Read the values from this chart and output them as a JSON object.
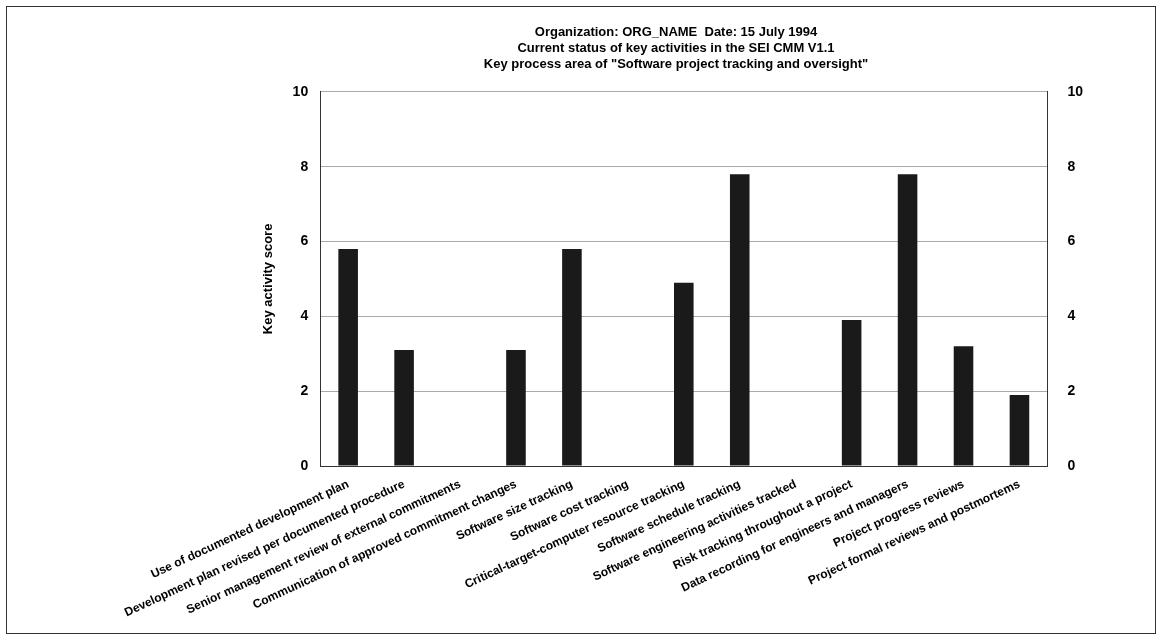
{
  "chart_data": {
    "type": "bar",
    "title": [
      "Organization: ORG_NAME  Date: 15 July 1994",
      "Current status of key activities in the SEI CMM V1.1",
      "Key process area of \"Software project tracking and oversight\""
    ],
    "ylabel": "Key activity score",
    "categories": [
      "Use of documented development plan",
      "Development plan revised per documented procedure",
      "Senior management review of external commitments",
      "Communication of approved commitment changes",
      "Software size tracking",
      "Software cost tracking",
      "Critical-target-computer resource tracking",
      "Software schedule tracking",
      "Software engineering activities tracked",
      "Risk tracking throughout a project",
      "Data recording for engineers and managers",
      "Project progress reviews",
      "Project formal reviews and postmortems"
    ],
    "values": [
      5.8,
      3.1,
      0,
      3.1,
      5.8,
      0,
      4.9,
      7.8,
      0,
      3.9,
      7.8,
      3.2,
      1.9
    ],
    "color": "#1a1a1a",
    "ylim": [
      0,
      10
    ],
    "yticks": [
      0,
      2,
      4,
      6,
      8,
      10
    ],
    "y2lim": [
      0,
      10
    ],
    "y2ticks": [
      0,
      2,
      4,
      6,
      8,
      10
    ],
    "grid": "y",
    "legend": false
  }
}
